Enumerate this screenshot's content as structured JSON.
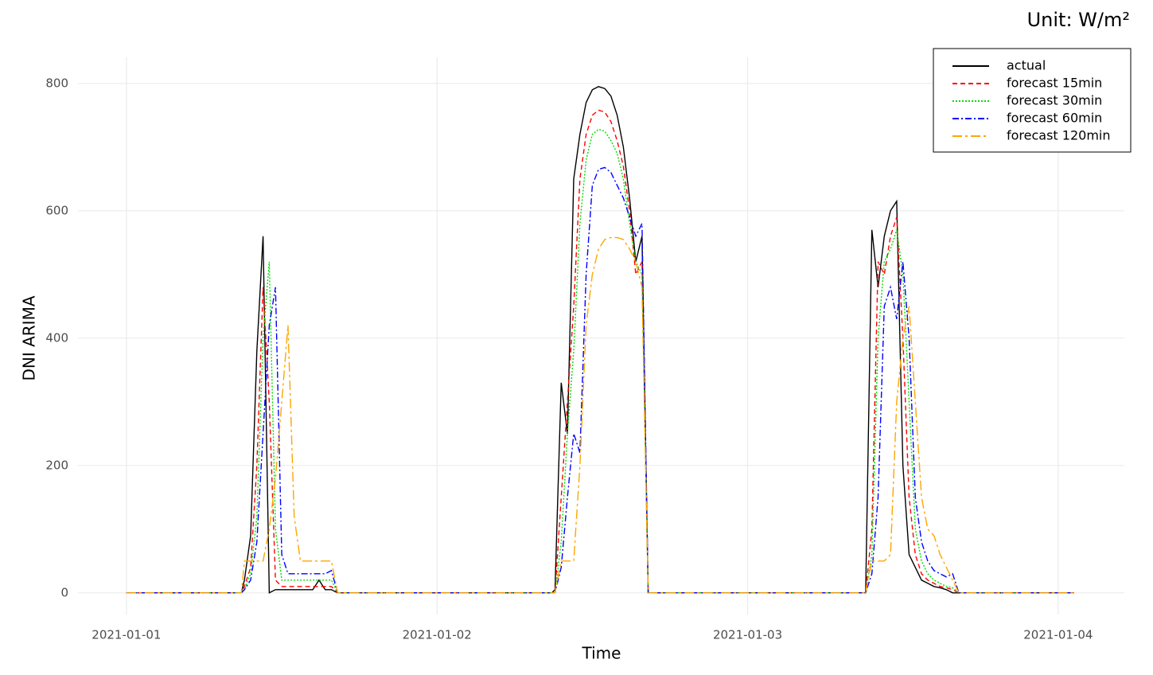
{
  "chart_data": {
    "type": "line",
    "unit_note": "Unit: W/m²",
    "xlabel": "Time",
    "ylabel": "DNI ARIMA",
    "x": [
      0,
      0.37,
      0.38,
      0.4,
      0.42,
      0.44,
      0.46,
      0.48,
      0.5,
      0.52,
      0.54,
      0.56,
      0.58,
      0.6,
      0.62,
      0.64,
      0.66,
      0.68,
      0.7,
      1.37,
      1.38,
      1.4,
      1.42,
      1.44,
      1.46,
      1.48,
      1.5,
      1.52,
      1.54,
      1.56,
      1.58,
      1.6,
      1.62,
      1.64,
      1.66,
      1.68,
      1.7,
      2.37,
      2.38,
      2.4,
      2.42,
      2.44,
      2.46,
      2.48,
      2.5,
      2.52,
      2.54,
      2.56,
      2.58,
      2.6,
      2.62,
      2.64,
      2.66,
      2.68,
      2.7,
      3.05
    ],
    "series": [
      {
        "name": "actual",
        "color": "#000000",
        "linestyle": "solid",
        "values": [
          0,
          0,
          20,
          90,
          380,
          560,
          0,
          5,
          5,
          5,
          5,
          5,
          5,
          5,
          20,
          5,
          5,
          0,
          0,
          0,
          5,
          330,
          250,
          650,
          720,
          770,
          790,
          795,
          792,
          780,
          750,
          700,
          620,
          520,
          560,
          0,
          0,
          0,
          0,
          570,
          480,
          560,
          600,
          615,
          200,
          60,
          40,
          20,
          15,
          10,
          8,
          5,
          0,
          0,
          0,
          0
        ]
      },
      {
        "name": "forecast 15min",
        "color": "#ff0000",
        "linestyle": "dashed",
        "values": [
          0,
          0,
          10,
          40,
          200,
          480,
          300,
          20,
          10,
          10,
          10,
          10,
          10,
          10,
          10,
          10,
          10,
          0,
          0,
          0,
          0,
          150,
          300,
          450,
          650,
          720,
          750,
          758,
          755,
          740,
          710,
          670,
          600,
          500,
          520,
          0,
          0,
          0,
          0,
          100,
          520,
          500,
          560,
          590,
          400,
          150,
          60,
          30,
          20,
          15,
          10,
          8,
          5,
          0,
          0,
          0
        ]
      },
      {
        "name": "forecast 30min",
        "color": "#00dd00",
        "linestyle": "dotted",
        "values": [
          0,
          0,
          5,
          30,
          120,
          400,
          520,
          100,
          20,
          20,
          20,
          20,
          20,
          20,
          20,
          20,
          20,
          0,
          0,
          0,
          0,
          80,
          250,
          380,
          580,
          680,
          720,
          728,
          725,
          710,
          690,
          650,
          580,
          520,
          500,
          0,
          0,
          0,
          0,
          60,
          400,
          520,
          540,
          570,
          500,
          300,
          100,
          50,
          30,
          20,
          15,
          10,
          8,
          0,
          0,
          0
        ]
      },
      {
        "name": "forecast 60min",
        "color": "#0000ff",
        "linestyle": "dotdash",
        "values": [
          0,
          0,
          5,
          20,
          80,
          250,
          420,
          480,
          60,
          30,
          30,
          30,
          30,
          30,
          30,
          30,
          35,
          0,
          0,
          0,
          0,
          40,
          150,
          250,
          220,
          500,
          640,
          665,
          668,
          660,
          640,
          620,
          590,
          560,
          580,
          0,
          0,
          0,
          0,
          30,
          150,
          450,
          480,
          430,
          520,
          400,
          150,
          80,
          50,
          35,
          30,
          25,
          30,
          0,
          0,
          0
        ]
      },
      {
        "name": "forecast 120min",
        "color": "#ffa500",
        "linestyle": "longdash",
        "values": [
          0,
          0,
          50,
          50,
          50,
          50,
          100,
          180,
          300,
          420,
          120,
          50,
          50,
          50,
          50,
          50,
          50,
          0,
          0,
          0,
          0,
          50,
          50,
          50,
          200,
          420,
          500,
          540,
          555,
          558,
          558,
          555,
          540,
          520,
          480,
          0,
          0,
          0,
          0,
          50,
          50,
          50,
          60,
          300,
          400,
          450,
          300,
          150,
          100,
          90,
          60,
          40,
          20,
          0,
          0,
          0
        ]
      }
    ],
    "xlim": [
      -0.156,
      3.213
    ],
    "xticks": [
      {
        "value": 0,
        "label": "2021-01-01"
      },
      {
        "value": 1,
        "label": "2021-01-02"
      },
      {
        "value": 2,
        "label": "2021-01-03"
      },
      {
        "value": 3,
        "label": "2021-01-04"
      }
    ],
    "ylim": [
      -34,
      841
    ],
    "yticks": [
      0,
      200,
      400,
      600,
      800
    ],
    "grid": true,
    "legend": "top-right"
  }
}
